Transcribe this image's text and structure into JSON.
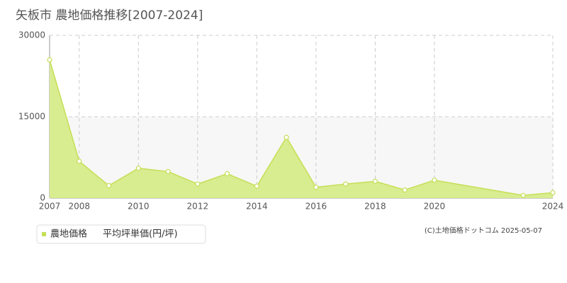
{
  "chart_data": {
    "type": "area",
    "title": "矢板市 農地価格推移[2007-2024]",
    "x": [
      2007,
      2008,
      2009,
      2010,
      2011,
      2012,
      2013,
      2014,
      2015,
      2016,
      2017,
      2018,
      2019,
      2020,
      2023,
      2024
    ],
    "series": [
      {
        "name": "農地価格",
        "color": "#c5df55",
        "values": [
          25500,
          6800,
          2300,
          5500,
          4900,
          2600,
          4500,
          2200,
          11200,
          2000,
          2600,
          3100,
          1500,
          3300,
          500,
          1000
        ]
      }
    ],
    "legend_label": "平均坪単価(円/坪)",
    "xlim": [
      2007,
      2024
    ],
    "xticks": [
      2007,
      2008,
      2010,
      2012,
      2014,
      2016,
      2018,
      2020,
      2024
    ],
    "ylim": [
      0,
      30000
    ],
    "yticks": [
      0,
      15000,
      30000
    ],
    "grid": true,
    "credit": "(C)土地価格ドットコム 2025-05-07"
  }
}
